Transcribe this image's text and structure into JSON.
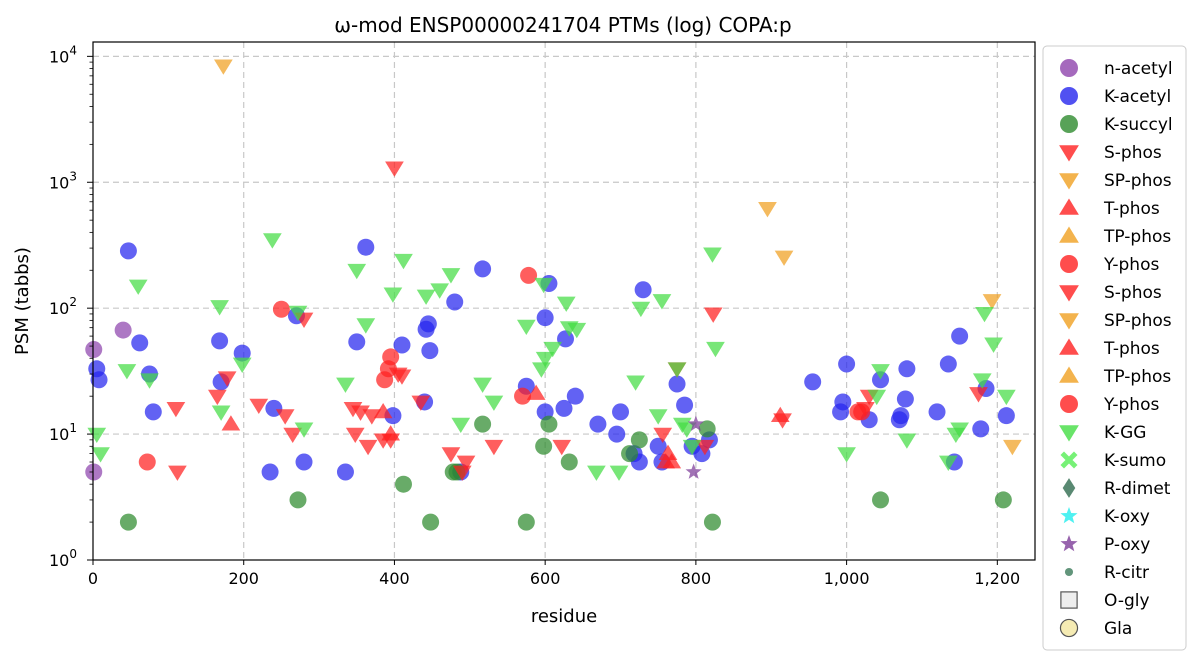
{
  "chart_data": {
    "type": "scatter",
    "title": "ω-mod ENSP00000241704 PTMs (log) COPA:p",
    "xlabel": "residue",
    "ylabel": "PSM (tabbs)",
    "xlim": [
      0,
      1250
    ],
    "ylim": [
      1,
      13000
    ],
    "yscale": "log",
    "grid": true,
    "legend_position": "right",
    "x_ticks": [
      {
        "value": 0,
        "label": "0"
      },
      {
        "value": 200,
        "label": "200"
      },
      {
        "value": 400,
        "label": "400"
      },
      {
        "value": 600,
        "label": "600"
      },
      {
        "value": 800,
        "label": "800"
      },
      {
        "value": 1000,
        "label": "1,000"
      },
      {
        "value": 1200,
        "label": "1,200"
      }
    ],
    "y_ticks": [
      {
        "value": 1,
        "base": "10",
        "exp": "0"
      },
      {
        "value": 10,
        "base": "10",
        "exp": "1"
      },
      {
        "value": 100,
        "base": "10",
        "exp": "2"
      },
      {
        "value": 1000,
        "base": "10",
        "exp": "3"
      },
      {
        "value": 10000,
        "base": "10",
        "exp": "4"
      }
    ],
    "legend": [
      {
        "label": "n-acetyl",
        "marker": "circle",
        "color": "#8e44ad"
      },
      {
        "label": "K-acetyl",
        "marker": "circle",
        "color": "#2626ee"
      },
      {
        "label": "K-succyl",
        "marker": "circle",
        "color": "#2e8b2e"
      },
      {
        "label": "S-phos",
        "marker": "triangle-down",
        "color": "#ff2020"
      },
      {
        "label": "SP-phos",
        "marker": "triangle-down",
        "color": "#f0a020"
      },
      {
        "label": "T-phos",
        "marker": "triangle-up",
        "color": "#ff2020"
      },
      {
        "label": "TP-phos",
        "marker": "triangle-up",
        "color": "#f0a020"
      },
      {
        "label": "Y-phos",
        "marker": "circle",
        "color": "#ff2020"
      },
      {
        "label": "S-phos",
        "marker": "triangle-down",
        "color": "#ff2020"
      },
      {
        "label": "SP-phos",
        "marker": "triangle-down",
        "color": "#f0a020"
      },
      {
        "label": "T-phos",
        "marker": "triangle-up",
        "color": "#ff2020"
      },
      {
        "label": "TP-phos",
        "marker": "triangle-up",
        "color": "#f0a020"
      },
      {
        "label": "Y-phos",
        "marker": "circle",
        "color": "#ff2020"
      },
      {
        "label": "K-GG",
        "marker": "triangle-down",
        "color": "#44dd44"
      },
      {
        "label": "K-sumo",
        "marker": "x",
        "color": "#55ee55"
      },
      {
        "label": "R-dimet",
        "marker": "diamond",
        "color": "#2f6b4f"
      },
      {
        "label": "K-oxy",
        "marker": "star",
        "color": "#22eeee"
      },
      {
        "label": "P-oxy",
        "marker": "star",
        "color": "#7d3c98"
      },
      {
        "label": "R-citr",
        "marker": "small-circle",
        "color": "#3b7a5a"
      },
      {
        "label": "O-gly",
        "marker": "square",
        "color": "#eeeeee"
      },
      {
        "label": "Gla",
        "marker": "circle-outline",
        "color": "#f3e6a0"
      }
    ],
    "series": [
      {
        "name": "n-acetyl",
        "marker": "circle",
        "color": "#8e44ad",
        "points": [
          [
            1,
            47
          ],
          [
            1,
            5
          ],
          [
            40,
            67
          ]
        ]
      },
      {
        "name": "K-acetyl",
        "marker": "circle",
        "color": "#2626ee",
        "points": [
          [
            5,
            33
          ],
          [
            8,
            27
          ],
          [
            47,
            285
          ],
          [
            62,
            53
          ],
          [
            75,
            30
          ],
          [
            80,
            15
          ],
          [
            168,
            55
          ],
          [
            170,
            26
          ],
          [
            198,
            44
          ],
          [
            235,
            5
          ],
          [
            240,
            16
          ],
          [
            270,
            87
          ],
          [
            280,
            6
          ],
          [
            335,
            5
          ],
          [
            350,
            54
          ],
          [
            362,
            305
          ],
          [
            398,
            14
          ],
          [
            410,
            51
          ],
          [
            440,
            18
          ],
          [
            442,
            68
          ],
          [
            445,
            75
          ],
          [
            447,
            46
          ],
          [
            480,
            112
          ],
          [
            488,
            5
          ],
          [
            517,
            205
          ],
          [
            575,
            24
          ],
          [
            600,
            15
          ],
          [
            600,
            84
          ],
          [
            605,
            157
          ],
          [
            625,
            16
          ],
          [
            627,
            57
          ],
          [
            640,
            20
          ],
          [
            670,
            12
          ],
          [
            695,
            10
          ],
          [
            700,
            15
          ],
          [
            718,
            7
          ],
          [
            725,
            6
          ],
          [
            730,
            140
          ],
          [
            750,
            8
          ],
          [
            755,
            6
          ],
          [
            775,
            25
          ],
          [
            785,
            17
          ],
          [
            795,
            8
          ],
          [
            808,
            7
          ],
          [
            818,
            9
          ],
          [
            955,
            26
          ],
          [
            992,
            15
          ],
          [
            995,
            18
          ],
          [
            1000,
            36
          ],
          [
            1030,
            13
          ],
          [
            1045,
            27
          ],
          [
            1070,
            13
          ],
          [
            1072,
            14
          ],
          [
            1078,
            19
          ],
          [
            1080,
            33
          ],
          [
            1120,
            15
          ],
          [
            1135,
            36
          ],
          [
            1143,
            6
          ],
          [
            1150,
            60
          ],
          [
            1178,
            11
          ],
          [
            1185,
            23
          ],
          [
            1212,
            14
          ]
        ]
      },
      {
        "name": "K-succyl",
        "marker": "circle",
        "color": "#2e8b2e",
        "points": [
          [
            47,
            2
          ],
          [
            272,
            3
          ],
          [
            412,
            4
          ],
          [
            448,
            2
          ],
          [
            478,
            5
          ],
          [
            483,
            5
          ],
          [
            517,
            12
          ],
          [
            575,
            2
          ],
          [
            598,
            8
          ],
          [
            605,
            12
          ],
          [
            632,
            6
          ],
          [
            712,
            7
          ],
          [
            725,
            9
          ],
          [
            815,
            11
          ],
          [
            822,
            2
          ],
          [
            1045,
            3
          ],
          [
            1208,
            3
          ]
        ]
      },
      {
        "name": "S-phos",
        "marker": "triangle-down",
        "color": "#ff2020",
        "points": [
          [
            110,
            16
          ],
          [
            112,
            5
          ],
          [
            165,
            20
          ],
          [
            178,
            28
          ],
          [
            220,
            17
          ],
          [
            255,
            14
          ],
          [
            265,
            10
          ],
          [
            280,
            82
          ],
          [
            345,
            16
          ],
          [
            348,
            10
          ],
          [
            355,
            15
          ],
          [
            365,
            8
          ],
          [
            370,
            14
          ],
          [
            385,
            9
          ],
          [
            395,
            9
          ],
          [
            400,
            1300
          ],
          [
            405,
            30
          ],
          [
            410,
            29
          ],
          [
            435,
            18
          ],
          [
            475,
            7
          ],
          [
            490,
            5
          ],
          [
            495,
            6
          ],
          [
            532,
            8
          ],
          [
            622,
            8
          ],
          [
            756,
            10
          ],
          [
            775,
            33
          ],
          [
            812,
            8
          ],
          [
            823,
            90
          ],
          [
            915,
            13
          ],
          [
            1025,
            16
          ],
          [
            1030,
            20
          ],
          [
            1175,
            21
          ]
        ]
      },
      {
        "name": "T-phos",
        "marker": "triangle-up",
        "color": "#ff2020",
        "points": [
          [
            183,
            12
          ],
          [
            385,
            15
          ],
          [
            395,
            10
          ],
          [
            588,
            21
          ],
          [
            760,
            6
          ],
          [
            763,
            7
          ],
          [
            768,
            6
          ],
          [
            912,
            14
          ]
        ]
      },
      {
        "name": "Y-phos",
        "marker": "circle",
        "color": "#ff2020",
        "points": [
          [
            72,
            6
          ],
          [
            250,
            98
          ],
          [
            387,
            27
          ],
          [
            392,
            33
          ],
          [
            395,
            41
          ],
          [
            570,
            20
          ],
          [
            578,
            182
          ],
          [
            1015,
            15
          ],
          [
            1020,
            15
          ]
        ]
      },
      {
        "name": "SP-phos",
        "marker": "triangle-down",
        "color": "#f0a020",
        "points": [
          [
            173,
            8400
          ],
          [
            895,
            620
          ],
          [
            917,
            255
          ],
          [
            1193,
            115
          ],
          [
            1220,
            8
          ]
        ]
      },
      {
        "name": "K-GG",
        "marker": "triangle-down",
        "color": "#44dd44",
        "points": [
          [
            5,
            10
          ],
          [
            10,
            7
          ],
          [
            45,
            32
          ],
          [
            60,
            150
          ],
          [
            75,
            27
          ],
          [
            168,
            103
          ],
          [
            170,
            15
          ],
          [
            198,
            36
          ],
          [
            238,
            350
          ],
          [
            272,
            93
          ],
          [
            280,
            11
          ],
          [
            335,
            25
          ],
          [
            350,
            200
          ],
          [
            362,
            74
          ],
          [
            398,
            130
          ],
          [
            412,
            240
          ],
          [
            442,
            125
          ],
          [
            460,
            140
          ],
          [
            475,
            185
          ],
          [
            488,
            12
          ],
          [
            517,
            25
          ],
          [
            532,
            18
          ],
          [
            575,
            72
          ],
          [
            595,
            33
          ],
          [
            598,
            155
          ],
          [
            600,
            40
          ],
          [
            610,
            48
          ],
          [
            628,
            110
          ],
          [
            632,
            70
          ],
          [
            642,
            68
          ],
          [
            668,
            5
          ],
          [
            698,
            5
          ],
          [
            720,
            26
          ],
          [
            727,
            100
          ],
          [
            750,
            14
          ],
          [
            755,
            115
          ],
          [
            775,
            33
          ],
          [
            782,
            12
          ],
          [
            788,
            11
          ],
          [
            795,
            8
          ],
          [
            822,
            270
          ],
          [
            826,
            48
          ],
          [
            1000,
            7
          ],
          [
            1040,
            20
          ],
          [
            1045,
            32
          ],
          [
            1080,
            9
          ],
          [
            1135,
            6
          ],
          [
            1145,
            10
          ],
          [
            1150,
            11
          ],
          [
            1180,
            27
          ],
          [
            1183,
            91
          ],
          [
            1195,
            52
          ],
          [
            1212,
            20
          ]
        ]
      },
      {
        "name": "P-oxy",
        "marker": "star",
        "color": "#7d3c98",
        "points": [
          [
            797,
            5
          ],
          [
            800,
            12
          ]
        ]
      }
    ]
  }
}
